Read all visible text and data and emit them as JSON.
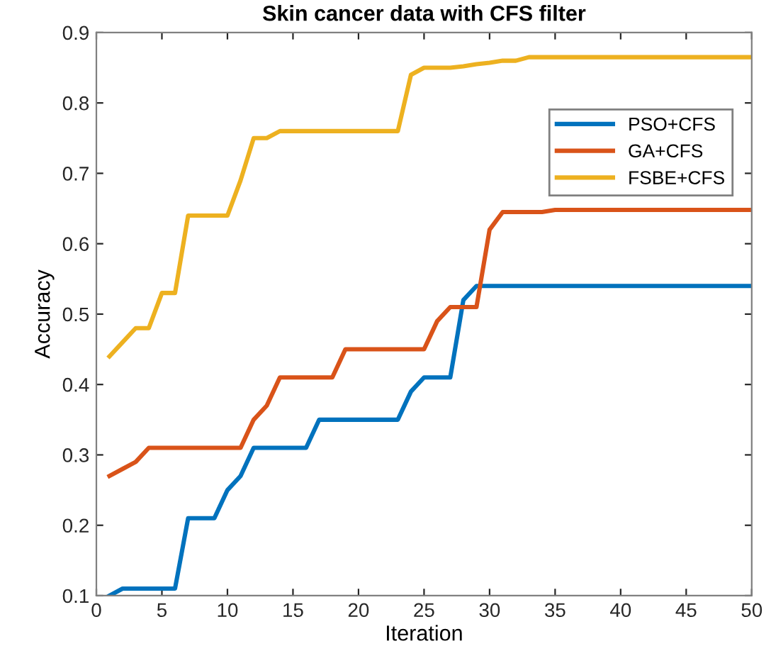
{
  "chart_data": {
    "type": "line",
    "title": "Skin cancer data with CFS filter",
    "xlabel": "Iteration",
    "ylabel": "Accuracy",
    "x": [
      1,
      2,
      3,
      4,
      5,
      6,
      7,
      8,
      9,
      10,
      11,
      12,
      13,
      14,
      15,
      16,
      17,
      18,
      19,
      20,
      21,
      22,
      23,
      24,
      25,
      26,
      27,
      28,
      29,
      30,
      31,
      32,
      33,
      34,
      35,
      36,
      37,
      38,
      39,
      40,
      41,
      42,
      43,
      44,
      45,
      46,
      47,
      48,
      49,
      50
    ],
    "series": [
      {
        "name": "PSO+CFS",
        "color": "#0072bd",
        "values": [
          0.1,
          0.11,
          0.11,
          0.11,
          0.11,
          0.11,
          0.21,
          0.21,
          0.21,
          0.25,
          0.27,
          0.31,
          0.31,
          0.31,
          0.31,
          0.31,
          0.35,
          0.35,
          0.35,
          0.35,
          0.35,
          0.35,
          0.35,
          0.39,
          0.41,
          0.41,
          0.41,
          0.52,
          0.54,
          0.54,
          0.54,
          0.54,
          0.54,
          0.54,
          0.54,
          0.54,
          0.54,
          0.54,
          0.54,
          0.54,
          0.54,
          0.54,
          0.54,
          0.54,
          0.54,
          0.54,
          0.54,
          0.54,
          0.54,
          0.54
        ]
      },
      {
        "name": "GA+CFS",
        "color": "#d95319",
        "values": [
          0.27,
          0.28,
          0.29,
          0.31,
          0.31,
          0.31,
          0.31,
          0.31,
          0.31,
          0.31,
          0.31,
          0.35,
          0.37,
          0.41,
          0.41,
          0.41,
          0.41,
          0.41,
          0.45,
          0.45,
          0.45,
          0.45,
          0.45,
          0.45,
          0.45,
          0.49,
          0.51,
          0.51,
          0.51,
          0.62,
          0.645,
          0.645,
          0.645,
          0.645,
          0.648,
          0.648,
          0.648,
          0.648,
          0.648,
          0.648,
          0.648,
          0.648,
          0.648,
          0.648,
          0.648,
          0.648,
          0.648,
          0.648,
          0.648,
          0.648
        ]
      },
      {
        "name": "FSBE+CFS",
        "color": "#edb120",
        "values": [
          0.44,
          0.46,
          0.48,
          0.48,
          0.53,
          0.53,
          0.64,
          0.64,
          0.64,
          0.64,
          0.69,
          0.75,
          0.75,
          0.76,
          0.76,
          0.76,
          0.76,
          0.76,
          0.76,
          0.76,
          0.76,
          0.76,
          0.76,
          0.84,
          0.85,
          0.85,
          0.85,
          0.852,
          0.855,
          0.857,
          0.86,
          0.86,
          0.865,
          0.865,
          0.865,
          0.865,
          0.865,
          0.865,
          0.865,
          0.865,
          0.865,
          0.865,
          0.865,
          0.865,
          0.865,
          0.865,
          0.865,
          0.865,
          0.865,
          0.865
        ]
      }
    ],
    "xlim": [
      0,
      50
    ],
    "ylim": [
      0.1,
      0.9
    ],
    "xticks": [
      0,
      5,
      10,
      15,
      20,
      25,
      30,
      35,
      40,
      45,
      50
    ],
    "yticks": [
      0.1,
      0.2,
      0.3,
      0.4,
      0.5,
      0.6,
      0.7,
      0.8,
      0.9
    ],
    "legend": "top right",
    "line_style": "solid",
    "marker": "none"
  }
}
